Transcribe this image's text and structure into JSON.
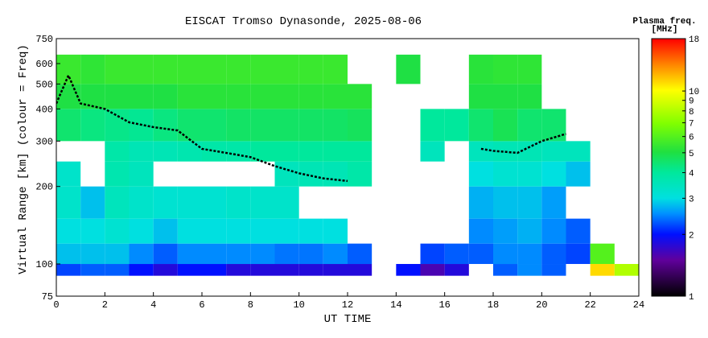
{
  "chart_data": {
    "type": "heatmap",
    "title": "EISCAT Tromso Dynasonde, 2025-08-06",
    "xlabel": "UT TIME",
    "ylabel": "Virtual Range [km] (colour = Freq)",
    "colorbar_title": [
      "Plasma freq.",
      "[MHz]"
    ],
    "xlim": [
      0,
      24
    ],
    "xticks": [
      0,
      2,
      4,
      6,
      8,
      10,
      12,
      14,
      16,
      18,
      20,
      22,
      24
    ],
    "ylim": [
      75,
      750
    ],
    "yticks": [
      75,
      100,
      200,
      300,
      400,
      500,
      600,
      750
    ],
    "log_y": true,
    "clim": [
      1,
      18
    ],
    "cticks": [
      1,
      2,
      3,
      4,
      5,
      6,
      7,
      8,
      9,
      10,
      18
    ],
    "log_c": true,
    "x_bins": [
      0,
      1,
      2,
      3,
      4,
      5,
      6,
      7,
      8,
      9,
      10,
      11,
      12,
      13,
      14,
      15,
      16,
      17,
      18,
      19,
      20,
      21,
      22,
      23,
      24
    ],
    "y_bins": [
      75,
      90,
      100,
      120,
      150,
      200,
      250,
      300,
      400,
      500,
      650,
      750
    ],
    "values": [
      [
        null,
        null,
        null,
        null,
        null,
        null,
        null,
        null,
        null,
        null,
        null,
        null,
        null,
        null,
        null,
        null,
        null,
        null,
        null,
        null,
        null,
        null,
        null,
        null
      ],
      [
        2.2,
        2.3,
        2.3,
        2.0,
        1.8,
        2.0,
        2.0,
        1.8,
        1.8,
        1.8,
        1.8,
        1.8,
        1.8,
        null,
        2.0,
        1.6,
        1.8,
        null,
        2.3,
        2.5,
        2.3,
        null,
        11,
        8
      ],
      [
        2.8,
        2.8,
        2.8,
        2.5,
        2.3,
        2.5,
        2.5,
        2.5,
        2.5,
        2.4,
        2.4,
        2.5,
        2.3,
        null,
        null,
        2.2,
        2.3,
        2.3,
        2.5,
        2.5,
        2.3,
        2.2,
        6,
        null
      ],
      [
        3,
        3,
        3.2,
        3,
        2.8,
        3,
        3,
        3,
        3,
        3,
        3,
        3,
        null,
        null,
        null,
        null,
        null,
        2.5,
        2.6,
        2.7,
        2.5,
        2.3,
        null,
        null
      ],
      [
        3.3,
        2.8,
        3.5,
        3.3,
        3.2,
        3.2,
        3.2,
        3.3,
        3.3,
        3.3,
        null,
        null,
        null,
        null,
        null,
        null,
        null,
        2.7,
        2.8,
        2.8,
        2.6,
        null,
        null,
        null
      ],
      [
        3.3,
        null,
        3.7,
        3.5,
        null,
        null,
        null,
        null,
        null,
        3.5,
        3.6,
        3.6,
        3.8,
        null,
        null,
        null,
        null,
        3,
        3.2,
        3.2,
        3.0,
        2.8,
        null,
        null
      ],
      [
        null,
        null,
        3.8,
        3.6,
        3.6,
        3.7,
        3.8,
        3.8,
        4,
        4,
        4,
        4,
        4,
        null,
        null,
        3.5,
        null,
        3.5,
        3.6,
        3.6,
        3.5,
        3.5,
        null,
        null
      ],
      [
        4.5,
        4.3,
        4.2,
        4.1,
        4.3,
        4.5,
        4.5,
        4.6,
        4.6,
        4.6,
        4.6,
        4.6,
        4.7,
        null,
        null,
        4,
        4,
        4.5,
        4.8,
        4.5,
        4.5,
        null,
        null,
        null
      ],
      [
        5,
        5,
        5,
        5,
        5,
        5.2,
        5.2,
        5.2,
        5.2,
        5.2,
        5.2,
        5.2,
        5.2,
        null,
        null,
        null,
        null,
        5,
        5,
        5,
        null,
        null,
        null,
        null
      ],
      [
        5.5,
        5.3,
        5.5,
        5.5,
        5.5,
        5.5,
        5.5,
        5.5,
        5.5,
        5.5,
        5.5,
        5.5,
        null,
        null,
        5,
        null,
        null,
        5.2,
        5.3,
        5.3,
        null,
        null,
        null,
        null
      ],
      [
        null,
        null,
        null,
        null,
        null,
        null,
        null,
        null,
        null,
        null,
        null,
        null,
        null,
        null,
        null,
        null,
        null,
        null,
        null,
        null,
        null,
        null,
        null,
        null
      ]
    ],
    "trace": {
      "color": "#000000",
      "x": [
        0,
        0.5,
        1,
        2,
        3,
        4,
        5,
        6,
        7,
        8,
        9,
        10,
        11,
        12,
        15,
        17.5,
        18,
        19,
        20,
        21
      ],
      "y": [
        420,
        540,
        420,
        400,
        355,
        340,
        330,
        280,
        270,
        260,
        240,
        225,
        215,
        210,
        null,
        280,
        275,
        270,
        300,
        320
      ]
    }
  }
}
